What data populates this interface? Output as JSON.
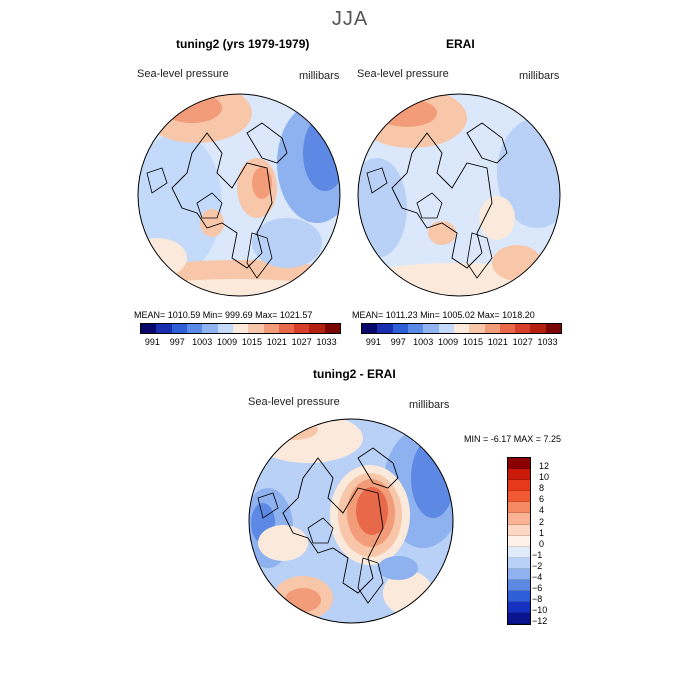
{
  "season": "JJA",
  "panel_left": {
    "title": "tuning2 (yrs 1979-1979)",
    "field": "Sea-level pressure",
    "units": "millibars",
    "stats": "MEAN= 1010.59   Min= 999.69   Max= 1021.57"
  },
  "panel_right": {
    "title": "ERAI",
    "field": "Sea-level pressure",
    "units": "millibars",
    "stats": "MEAN= 1011.23   Min= 1005.02   Max= 1018.20"
  },
  "abs_colorbar": {
    "colors": [
      "#08086b",
      "#1a2fb0",
      "#2f5fd6",
      "#5a8ae8",
      "#8fb4f2",
      "#c4dafa",
      "#fbeadc",
      "#f8c6a8",
      "#f29c7a",
      "#e8694a",
      "#d63f2a",
      "#b3200f",
      "#7a0606"
    ],
    "labels": [
      "991",
      "997",
      "1003",
      "1009",
      "1015",
      "1021",
      "1027",
      "1033"
    ]
  },
  "panel_diff": {
    "title": "tuning2 - ERAI",
    "field": "Sea-level pressure",
    "units": "millibars",
    "stats": "MIN =   -6.17 MAX =    7.25"
  },
  "diff_colorbar": {
    "colors": [
      "#8b0000",
      "#cc1a0a",
      "#e8381c",
      "#f25a36",
      "#f58a62",
      "#f8b394",
      "#fbd8c4",
      "#fdf1e8",
      "#dfeafb",
      "#b9d1f6",
      "#8eb1ef",
      "#5d88e4",
      "#2f5fd8",
      "#1630c0",
      "#0a148f"
    ],
    "labels": [
      "12",
      "10",
      "8",
      "6",
      "4",
      "2",
      "1",
      "0",
      "−1",
      "−2",
      "−4",
      "−6",
      "−8",
      "−10",
      "−12"
    ]
  },
  "map_colors": {
    "ocean_base": "#dbe8fb",
    "light_blue": "#b9d1f6",
    "mid_blue": "#8eb1ef",
    "deep_blue": "#5d88e4",
    "light_red": "#f8c6a8",
    "mid_red": "#f29c7a",
    "deep_red": "#e8694a",
    "peach": "#fbeadc"
  }
}
